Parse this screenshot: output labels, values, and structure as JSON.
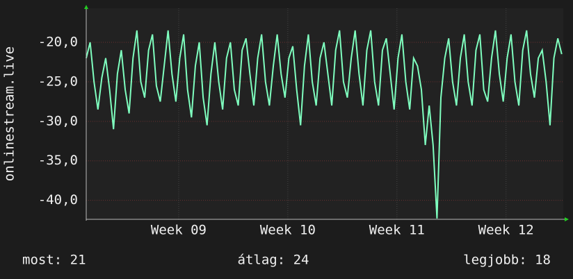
{
  "chart_data": {
    "type": "line",
    "ylabel": "onlinestream.live",
    "x": [
      0,
      0.25,
      0.5,
      0.75,
      1,
      1.25,
      1.5,
      1.75,
      2,
      2.25,
      2.5,
      2.75,
      3,
      3.25,
      3.5,
      3.75,
      4,
      4.25,
      4.5,
      4.75,
      5,
      5.25,
      5.5,
      5.75,
      6,
      6.25,
      6.5,
      6.75,
      7,
      7.25,
      7.5,
      7.75,
      8,
      8.25,
      8.5,
      8.75,
      9,
      9.25,
      9.5,
      9.75,
      10,
      10.25,
      10.5,
      10.75,
      11,
      11.25,
      11.5,
      11.75,
      12,
      12.25,
      12.5,
      12.75,
      13,
      13.25,
      13.5,
      13.75,
      14,
      14.25,
      14.5,
      14.75,
      15,
      15.25,
      15.5,
      15.75,
      16,
      16.25,
      16.5,
      16.75,
      17,
      17.25,
      17.5,
      17.75,
      18,
      18.25,
      18.5,
      18.75,
      19,
      19.25,
      19.5,
      19.75,
      20,
      20.25,
      20.5,
      20.75,
      21,
      21.25,
      21.5,
      21.75,
      22,
      22.25,
      22.5,
      22.75,
      23,
      23.25,
      23.5,
      23.75,
      24,
      24.25,
      24.5,
      24.75,
      25,
      25.25,
      25.5,
      25.75,
      26,
      26.25,
      26.5,
      26.75,
      27,
      27.25,
      27.5,
      27.75,
      28,
      28.25,
      28.5,
      28.75,
      29,
      29.25,
      29.5,
      29.75,
      30,
      30.25,
      30.5
    ],
    "series": [
      {
        "name": "onlinestream.live",
        "color": "#7fffbf",
        "values": [
          -22,
          -20,
          -25,
          -28.5,
          -24.5,
          -22,
          -26,
          -31,
          -24,
          -21,
          -26,
          -29,
          -22,
          -18.5,
          -25,
          -27,
          -21,
          -19,
          -25.5,
          -27.5,
          -23,
          -18.5,
          -24,
          -27.5,
          -22,
          -19,
          -26,
          -29.5,
          -23,
          -20,
          -27,
          -30.5,
          -24,
          -20,
          -25,
          -28.5,
          -22,
          -20,
          -26,
          -28,
          -21,
          -19.5,
          -24,
          -28,
          -22,
          -19,
          -25,
          -28,
          -23,
          -19,
          -24,
          -27,
          -22,
          -20.5,
          -26,
          -30.5,
          -23,
          -19,
          -25,
          -28,
          -22,
          -20,
          -24,
          -28,
          -21,
          -18.5,
          -25,
          -27,
          -22,
          -18.5,
          -24,
          -28,
          -21,
          -18.5,
          -25,
          -28,
          -21,
          -19.5,
          -24,
          -28.5,
          -22,
          -19,
          -25,
          -28.5,
          -22,
          -23,
          -26,
          -33,
          -28,
          -33,
          -42.3,
          -27,
          -22,
          -19.5,
          -25,
          -28,
          -22,
          -19,
          -25,
          -28,
          -21,
          -19,
          -26,
          -27.5,
          -22,
          -18.5,
          -24,
          -27.5,
          -22,
          -19,
          -25,
          -28,
          -21,
          -18.5,
          -24,
          -27,
          -22,
          -21,
          -25,
          -30.5,
          -22,
          -19.5,
          -21.5
        ]
      }
    ],
    "xlim": [
      0,
      30.6
    ],
    "xticks": [
      {
        "value": 5.93,
        "label": "Week 09"
      },
      {
        "value": 12.93,
        "label": "Week 10"
      },
      {
        "value": 19.93,
        "label": "Week 11"
      },
      {
        "value": 26.93,
        "label": "Week 12"
      }
    ],
    "ylim": [
      -42.4,
      -15.7
    ],
    "yticks": [
      {
        "value": -20,
        "label": "-20,0"
      },
      {
        "value": -25,
        "label": "-25,0"
      },
      {
        "value": -30,
        "label": "-30,0"
      },
      {
        "value": -35,
        "label": "-35,0"
      },
      {
        "value": -40,
        "label": "-40,0"
      }
    ],
    "grid": true,
    "legend": [
      "most: 21",
      "átlag: 24",
      "legjobb: 18"
    ]
  }
}
